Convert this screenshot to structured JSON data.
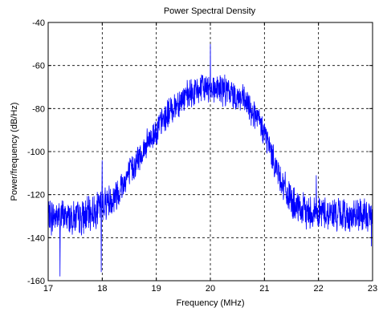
{
  "chart_data": {
    "type": "line",
    "title": "Power Spectral Density",
    "xlabel": "Frequency (MHz)",
    "ylabel": "Power/frequency (dB/Hz)",
    "xlim": [
      17,
      23
    ],
    "ylim": [
      -160,
      -40
    ],
    "xticks": [
      17,
      18,
      19,
      20,
      21,
      22,
      23
    ],
    "yticks": [
      -40,
      -60,
      -80,
      -100,
      -120,
      -140,
      -160
    ],
    "grid": "dashed",
    "legend": "none",
    "series_color": "#0000ff",
    "envelope": {
      "x": [
        17.0,
        17.3,
        17.6,
        17.9,
        18.0,
        18.2,
        18.4,
        18.6,
        18.8,
        19.0,
        19.2,
        19.4,
        19.6,
        19.8,
        20.0,
        20.2,
        20.4,
        20.6,
        20.8,
        21.0,
        21.2,
        21.4,
        21.6,
        21.8,
        22.0,
        22.3,
        22.6,
        23.0
      ],
      "y": [
        -130,
        -130,
        -131,
        -127,
        -124,
        -122,
        -114,
        -106,
        -98,
        -90,
        -83,
        -77,
        -74,
        -71,
        -70,
        -71,
        -73,
        -76,
        -82,
        -91,
        -106,
        -119,
        -127,
        -128,
        -128,
        -129,
        -130,
        -130
      ]
    },
    "peaks": [
      {
        "x": 20.0,
        "y": -50
      },
      {
        "x": 18.0,
        "y": -104
      },
      {
        "x": 21.96,
        "y": -111
      }
    ],
    "dips": [
      {
        "x": 17.22,
        "y": -158
      },
      {
        "x": 17.98,
        "y": -156
      },
      {
        "x": 17.06,
        "y": -139
      },
      {
        "x": 22.98,
        "y": -144
      }
    ]
  }
}
